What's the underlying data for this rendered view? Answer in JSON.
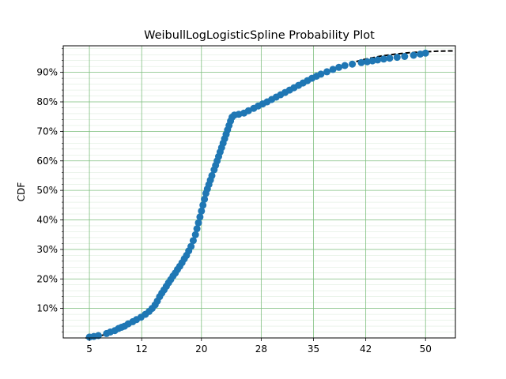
{
  "chart_data": {
    "type": "scatter",
    "title": "WeibullLogLogisticSpline Probability Plot",
    "xlabel": "",
    "ylabel": "CDF",
    "x_ticks": [
      {
        "value": 5,
        "label": "5"
      },
      {
        "value": 12,
        "label": "12"
      },
      {
        "value": 20,
        "label": "20"
      },
      {
        "value": 28,
        "label": "28"
      },
      {
        "value": 35,
        "label": "35"
      },
      {
        "value": 42,
        "label": "42"
      },
      {
        "value": 50,
        "label": "50"
      }
    ],
    "y_ticks": [
      {
        "value": 0.1,
        "label": "10%"
      },
      {
        "value": 0.2,
        "label": "20%"
      },
      {
        "value": 0.3,
        "label": "30%"
      },
      {
        "value": 0.4,
        "label": "40%"
      },
      {
        "value": 0.5,
        "label": "50%"
      },
      {
        "value": 0.6,
        "label": "60%"
      },
      {
        "value": 0.7,
        "label": "70%"
      },
      {
        "value": 0.8,
        "label": "80%"
      },
      {
        "value": 0.9,
        "label": "90%"
      }
    ],
    "grid": true,
    "series": [
      {
        "kind": "points",
        "color": "#1f77b4",
        "points": [
          [
            5.0,
            0.003
          ],
          [
            5.6,
            0.005
          ],
          [
            6.2,
            0.008
          ],
          [
            7.3,
            0.015
          ],
          [
            7.8,
            0.02
          ],
          [
            8.4,
            0.025
          ],
          [
            8.9,
            0.032
          ],
          [
            9.3,
            0.036
          ],
          [
            9.7,
            0.04
          ],
          [
            10.2,
            0.048
          ],
          [
            10.8,
            0.055
          ],
          [
            11.3,
            0.062
          ],
          [
            11.9,
            0.07
          ],
          [
            12.5,
            0.08
          ],
          [
            13.0,
            0.09
          ],
          [
            13.4,
            0.1
          ],
          [
            13.8,
            0.112
          ],
          [
            14.1,
            0.125
          ],
          [
            14.4,
            0.14
          ],
          [
            14.7,
            0.152
          ],
          [
            15.0,
            0.163
          ],
          [
            15.3,
            0.175
          ],
          [
            15.6,
            0.187
          ],
          [
            15.9,
            0.198
          ],
          [
            16.2,
            0.21
          ],
          [
            16.5,
            0.22
          ],
          [
            16.8,
            0.232
          ],
          [
            17.1,
            0.243
          ],
          [
            17.4,
            0.255
          ],
          [
            17.7,
            0.268
          ],
          [
            18.0,
            0.28
          ],
          [
            18.3,
            0.295
          ],
          [
            18.6,
            0.31
          ],
          [
            18.9,
            0.33
          ],
          [
            19.2,
            0.35
          ],
          [
            19.4,
            0.37
          ],
          [
            19.6,
            0.39
          ],
          [
            19.8,
            0.41
          ],
          [
            20.0,
            0.43
          ],
          [
            20.2,
            0.45
          ],
          [
            20.4,
            0.47
          ],
          [
            20.6,
            0.49
          ],
          [
            20.8,
            0.505
          ],
          [
            21.0,
            0.52
          ],
          [
            21.2,
            0.535
          ],
          [
            21.4,
            0.55
          ],
          [
            21.7,
            0.57
          ],
          [
            21.9,
            0.585
          ],
          [
            22.1,
            0.6
          ],
          [
            22.3,
            0.615
          ],
          [
            22.5,
            0.63
          ],
          [
            22.7,
            0.645
          ],
          [
            22.9,
            0.66
          ],
          [
            23.1,
            0.675
          ],
          [
            23.3,
            0.69
          ],
          [
            23.5,
            0.705
          ],
          [
            23.7,
            0.72
          ],
          [
            23.9,
            0.735
          ],
          [
            24.1,
            0.748
          ],
          [
            24.4,
            0.755
          ],
          [
            25.0,
            0.758
          ],
          [
            25.7,
            0.762
          ],
          [
            26.3,
            0.77
          ],
          [
            27.0,
            0.778
          ],
          [
            27.6,
            0.786
          ],
          [
            28.2,
            0.793
          ],
          [
            28.8,
            0.8
          ],
          [
            29.4,
            0.808
          ],
          [
            30.0,
            0.816
          ],
          [
            30.6,
            0.824
          ],
          [
            31.2,
            0.832
          ],
          [
            31.8,
            0.84
          ],
          [
            32.4,
            0.848
          ],
          [
            33.0,
            0.856
          ],
          [
            33.6,
            0.864
          ],
          [
            34.2,
            0.872
          ],
          [
            34.8,
            0.88
          ],
          [
            35.4,
            0.887
          ],
          [
            36.0,
            0.894
          ],
          [
            36.8,
            0.902
          ],
          [
            37.6,
            0.91
          ],
          [
            38.4,
            0.917
          ],
          [
            39.2,
            0.923
          ],
          [
            40.2,
            0.928
          ],
          [
            41.4,
            0.933
          ],
          [
            42.2,
            0.936
          ],
          [
            42.9,
            0.939
          ],
          [
            43.6,
            0.942
          ],
          [
            44.4,
            0.945
          ],
          [
            45.2,
            0.948
          ],
          [
            46.2,
            0.951
          ],
          [
            47.2,
            0.954
          ],
          [
            48.4,
            0.958
          ],
          [
            49.3,
            0.962
          ],
          [
            50.0,
            0.965
          ]
        ]
      },
      {
        "kind": "fit-line",
        "color": "#000000",
        "dashed": true,
        "points": [
          [
            4.5,
            0.0
          ],
          [
            6.0,
            0.004
          ],
          [
            8.0,
            0.018
          ],
          [
            10.0,
            0.04
          ],
          [
            12.0,
            0.068
          ],
          [
            13.0,
            0.09
          ],
          [
            14.0,
            0.128
          ],
          [
            15.0,
            0.163
          ],
          [
            16.0,
            0.198
          ],
          [
            17.0,
            0.238
          ],
          [
            18.0,
            0.28
          ],
          [
            19.0,
            0.335
          ],
          [
            19.5,
            0.37
          ],
          [
            20.0,
            0.425
          ],
          [
            20.5,
            0.48
          ],
          [
            21.0,
            0.52
          ],
          [
            21.5,
            0.555
          ],
          [
            22.0,
            0.59
          ],
          [
            22.5,
            0.63
          ],
          [
            23.0,
            0.668
          ],
          [
            23.5,
            0.705
          ],
          [
            24.0,
            0.74
          ],
          [
            24.5,
            0.755
          ],
          [
            25.0,
            0.758
          ],
          [
            26.0,
            0.764
          ],
          [
            27.0,
            0.774
          ],
          [
            28.0,
            0.787
          ],
          [
            29.0,
            0.799
          ],
          [
            30.0,
            0.811
          ],
          [
            31.0,
            0.824
          ],
          [
            32.0,
            0.837
          ],
          [
            33.0,
            0.852
          ],
          [
            34.0,
            0.866
          ],
          [
            35.0,
            0.879
          ],
          [
            36.0,
            0.891
          ],
          [
            37.0,
            0.903
          ],
          [
            38.0,
            0.914
          ],
          [
            39.0,
            0.923
          ],
          [
            40.0,
            0.932
          ],
          [
            42.0,
            0.945
          ],
          [
            44.0,
            0.955
          ],
          [
            46.0,
            0.962
          ],
          [
            48.0,
            0.967
          ],
          [
            50.0,
            0.97
          ],
          [
            52.0,
            0.972
          ],
          [
            54.0,
            0.973
          ]
        ]
      }
    ],
    "xlim": [
      1.5,
      54
    ],
    "ylim": [
      0,
      0.99
    ]
  }
}
